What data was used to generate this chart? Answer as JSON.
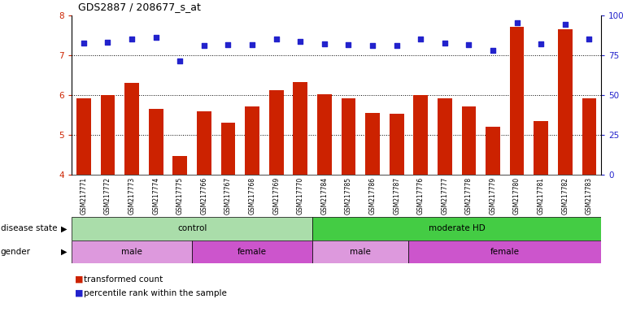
{
  "title": "GDS2887 / 208677_s_at",
  "samples": [
    "GSM217771",
    "GSM217772",
    "GSM217773",
    "GSM217774",
    "GSM217775",
    "GSM217766",
    "GSM217767",
    "GSM217768",
    "GSM217769",
    "GSM217770",
    "GSM217784",
    "GSM217785",
    "GSM217786",
    "GSM217787",
    "GSM217776",
    "GSM217777",
    "GSM217778",
    "GSM217779",
    "GSM217780",
    "GSM217781",
    "GSM217782",
    "GSM217783"
  ],
  "bar_values": [
    5.92,
    6.0,
    6.3,
    5.65,
    4.47,
    5.6,
    5.3,
    5.72,
    6.13,
    6.33,
    6.03,
    5.92,
    5.55,
    5.53,
    6.0,
    5.92,
    5.72,
    5.2,
    7.72,
    5.35,
    7.65,
    5.92
  ],
  "percentile_values": [
    7.3,
    7.32,
    7.42,
    7.45,
    6.87,
    7.25,
    7.27,
    7.27,
    7.42,
    7.35,
    7.28,
    7.27,
    7.24,
    7.24,
    7.42,
    7.3,
    7.27,
    7.13,
    7.82,
    7.28,
    7.78,
    7.42
  ],
  "bar_color": "#cc2200",
  "dot_color": "#2222cc",
  "ylim_left": [
    4,
    8
  ],
  "yticks_left": [
    4,
    5,
    6,
    7,
    8
  ],
  "yticks_right": [
    0,
    25,
    50,
    75,
    100
  ],
  "ytick_labels_right": [
    "0",
    "25",
    "50",
    "75",
    "100%"
  ],
  "dotted_lines": [
    5,
    6,
    7
  ],
  "disease_state_groups": [
    {
      "label": "control",
      "start": 0,
      "end": 10,
      "color": "#aaddaa"
    },
    {
      "label": "moderate HD",
      "start": 10,
      "end": 22,
      "color": "#44cc44"
    }
  ],
  "gender_groups": [
    {
      "label": "male",
      "start": 0,
      "end": 5,
      "color": "#dd99dd"
    },
    {
      "label": "female",
      "start": 5,
      "end": 10,
      "color": "#cc55cc"
    },
    {
      "label": "male",
      "start": 10,
      "end": 14,
      "color": "#dd99dd"
    },
    {
      "label": "female",
      "start": 14,
      "end": 22,
      "color": "#cc55cc"
    }
  ],
  "bg_color": "#ffffff",
  "tick_bg_color": "#dddddd"
}
